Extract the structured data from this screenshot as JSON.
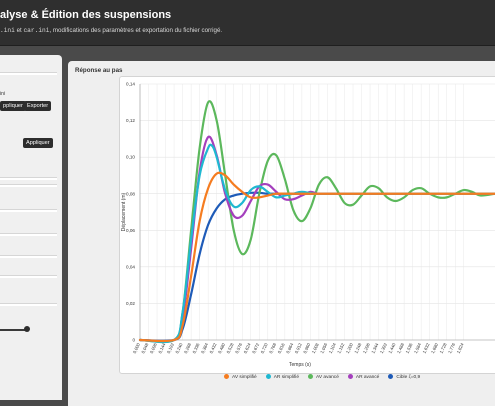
{
  "header": {
    "title": "alyse & Édition des suspensions",
    "subtitle_file1": ".ini",
    "subtitle_sep": " et ",
    "subtitle_file2": "car.ini",
    "subtitle_rest": ", modifications des paramètres et exportation du fichier corrigé."
  },
  "sidebar": {
    "label_fragment": "ini",
    "apply_button_1": "ppliquer",
    "export_button": "Exporter",
    "apply_button_2": "Appliquer",
    "slider_value": 0.47
  },
  "panel": {
    "title": "Réponse au pas"
  },
  "chart_data": {
    "type": "line",
    "xlabel": "Temps (s)",
    "ylabel": "Déplacement (m)",
    "ylim": [
      0,
      0.14
    ],
    "xlim": [
      0,
      2.0
    ],
    "yticks": [
      "0",
      "0,02",
      "0,04",
      "0,06",
      "0,08",
      "0,10",
      "0,12",
      "0,14"
    ],
    "xtick_labels": [
      "0,000",
      "0,048",
      "0,096",
      "0,144",
      "0,192",
      "0,240",
      "0,288",
      "0,336",
      "0,384",
      "0,432",
      "0,480",
      "0,528",
      "0,576",
      "0,624",
      "0,672",
      "0,720",
      "0,768",
      "0,816",
      "0,864",
      "0,912",
      "0,960",
      "1,008",
      "1,056",
      "1,104",
      "1,152",
      "1,200",
      "1,248",
      "1,296",
      "1,344",
      "1,392",
      "1,440",
      "1,488",
      "1,536",
      "1,584",
      "1,632",
      "1,680",
      "1,728",
      "1,776",
      "1,824"
    ],
    "grid": true,
    "legend_position": "bottom",
    "series": [
      {
        "name": "AV simplifié",
        "color": "#f57c20",
        "x": [
          0,
          0.192,
          0.24,
          0.288,
          0.336,
          0.384,
          0.432,
          0.48,
          0.528,
          0.576,
          0.624,
          0.672,
          0.72,
          0.768,
          0.816,
          0.864,
          1.0,
          1.2,
          2.0
        ],
        "y": [
          0,
          0,
          0.008,
          0.035,
          0.065,
          0.083,
          0.091,
          0.09,
          0.085,
          0.081,
          0.078,
          0.078,
          0.079,
          0.08,
          0.08,
          0.08,
          0.08,
          0.08,
          0.08
        ]
      },
      {
        "name": "AR simplifié",
        "color": "#1fb8d1",
        "x": [
          0,
          0.192,
          0.24,
          0.288,
          0.336,
          0.384,
          0.408,
          0.432,
          0.48,
          0.528,
          0.576,
          0.624,
          0.672,
          0.72,
          0.768,
          0.816,
          0.864,
          0.912,
          1.0,
          1.2,
          2.0
        ],
        "y": [
          0,
          0,
          0.015,
          0.055,
          0.09,
          0.105,
          0.106,
          0.1,
          0.082,
          0.073,
          0.075,
          0.082,
          0.084,
          0.081,
          0.078,
          0.079,
          0.08,
          0.081,
          0.08,
          0.08,
          0.08
        ]
      },
      {
        "name": "AV avancé",
        "color": "#5cb85c",
        "x": [
          0,
          0.192,
          0.24,
          0.288,
          0.336,
          0.384,
          0.432,
          0.48,
          0.528,
          0.576,
          0.624,
          0.672,
          0.72,
          0.768,
          0.816,
          0.864,
          0.912,
          0.96,
          1.008,
          1.056,
          1.104,
          1.152,
          1.2,
          1.248,
          1.296,
          1.344,
          1.392,
          1.44,
          1.488,
          1.536,
          1.584,
          1.632,
          1.68,
          1.728,
          1.776,
          1.824,
          1.872,
          1.92,
          2.0
        ],
        "y": [
          0,
          0,
          0.015,
          0.06,
          0.105,
          0.13,
          0.12,
          0.09,
          0.06,
          0.047,
          0.055,
          0.08,
          0.098,
          0.101,
          0.088,
          0.071,
          0.065,
          0.072,
          0.085,
          0.089,
          0.083,
          0.075,
          0.074,
          0.079,
          0.084,
          0.083,
          0.078,
          0.076,
          0.078,
          0.082,
          0.083,
          0.08,
          0.078,
          0.078,
          0.08,
          0.082,
          0.081,
          0.079,
          0.08
        ]
      },
      {
        "name": "AR avancé",
        "color": "#a43fbd",
        "x": [
          0,
          0.192,
          0.24,
          0.288,
          0.336,
          0.384,
          0.432,
          0.48,
          0.528,
          0.576,
          0.624,
          0.672,
          0.72,
          0.768,
          0.816,
          0.864,
          0.912,
          0.96,
          1.008,
          1.1,
          1.2,
          2.0
        ],
        "y": [
          0,
          0,
          0.012,
          0.05,
          0.092,
          0.111,
          0.101,
          0.08,
          0.068,
          0.068,
          0.076,
          0.084,
          0.085,
          0.081,
          0.077,
          0.077,
          0.079,
          0.081,
          0.08,
          0.08,
          0.08,
          0.08
        ]
      },
      {
        "name": "Cible ζ=0,9",
        "color": "#1e5bb8",
        "x": [
          0,
          0.192,
          0.24,
          0.288,
          0.336,
          0.384,
          0.432,
          0.48,
          0.528,
          0.576,
          0.624,
          0.672,
          0.72,
          0.8,
          1.0,
          2.0
        ],
        "y": [
          0,
          0,
          0.006,
          0.025,
          0.047,
          0.063,
          0.072,
          0.077,
          0.079,
          0.08,
          0.0805,
          0.0805,
          0.08,
          0.08,
          0.08,
          0.08
        ]
      }
    ]
  }
}
